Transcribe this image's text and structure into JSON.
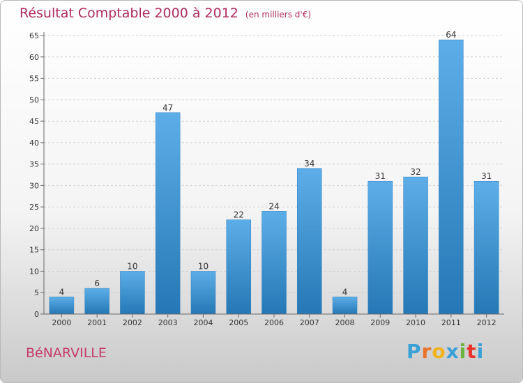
{
  "title": "Résultat Comptable 2000 à 2012",
  "unit_note": "(en milliers d'€)",
  "commune": "BéNARVILLE",
  "logo": {
    "letters": [
      "P",
      "r",
      "o",
      "x",
      "i",
      "t",
      "i"
    ],
    "colors": [
      "#3aa0d8",
      "#e8732a",
      "#f2b21c",
      "#3aa0d8",
      "#6bb33a",
      "#e8322a",
      "#3aa0d8"
    ]
  },
  "colors": {
    "bar_top": "#5daee8",
    "bar_bottom": "#2578b5",
    "title": "#b02a5c"
  },
  "chart_data": {
    "type": "bar",
    "categories": [
      "2000",
      "2001",
      "2002",
      "2003",
      "2004",
      "2005",
      "2006",
      "2007",
      "2008",
      "2009",
      "2010",
      "2011",
      "2012"
    ],
    "values": [
      4,
      6,
      10,
      47,
      10,
      22,
      24,
      34,
      4,
      31,
      32,
      64,
      31
    ],
    "yticks": [
      0,
      5,
      10,
      15,
      20,
      25,
      30,
      35,
      40,
      45,
      50,
      55,
      60,
      65
    ],
    "ylim": [
      0,
      65
    ],
    "grid": true
  }
}
